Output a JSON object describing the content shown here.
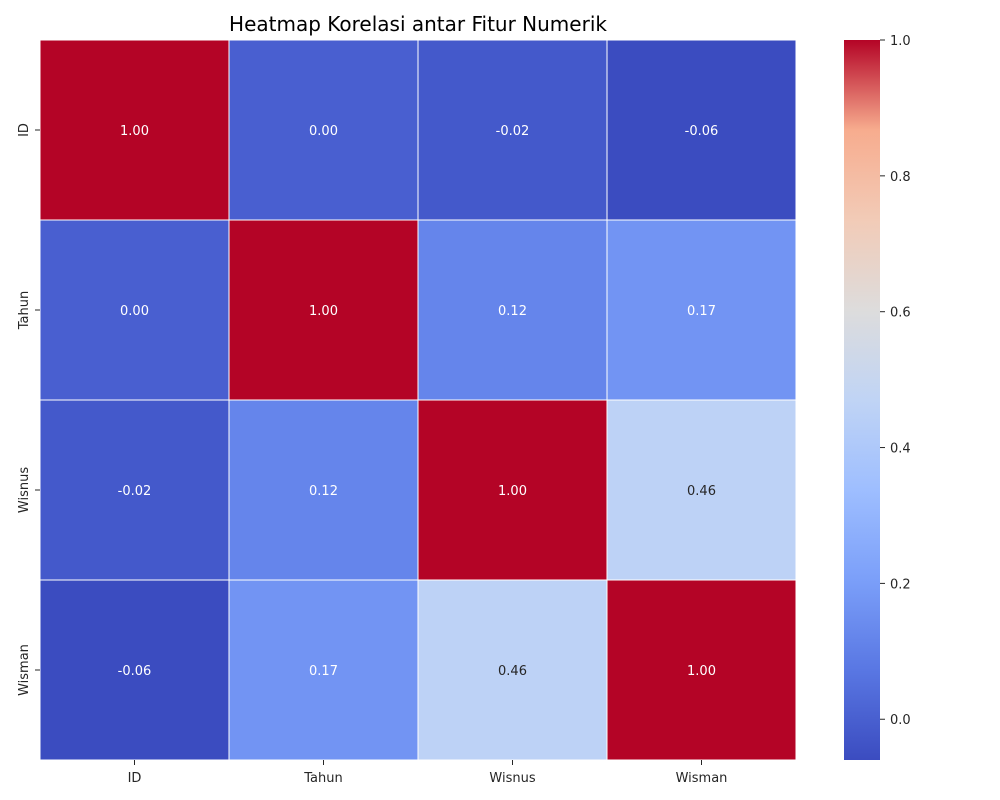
{
  "chart_data": {
    "type": "heatmap",
    "title": "Heatmap Korelasi antar Fitur Numerik",
    "xlabel": "",
    "ylabel": "",
    "row_labels": [
      "ID",
      "Tahun",
      "Wisnus",
      "Wisman"
    ],
    "col_labels": [
      "ID",
      "Tahun",
      "Wisnus",
      "Wisman"
    ],
    "values": [
      [
        1.0,
        0.0,
        -0.02,
        -0.06
      ],
      [
        0.0,
        1.0,
        0.12,
        0.17
      ],
      [
        -0.02,
        0.12,
        1.0,
        0.46
      ],
      [
        -0.06,
        0.17,
        0.46,
        1.0
      ]
    ],
    "cell_text": [
      [
        "1.00",
        "0.00",
        "-0.02",
        "-0.06"
      ],
      [
        "0.00",
        "1.00",
        "0.12",
        "0.17"
      ],
      [
        "-0.02",
        "0.12",
        "1.00",
        "0.46"
      ],
      [
        "-0.06",
        "0.17",
        "0.46",
        "1.00"
      ]
    ],
    "colormap": "coolwarm",
    "colorbar": {
      "range": [
        -0.06,
        1.0
      ],
      "ticks": [
        0.0,
        0.2,
        0.4,
        0.6,
        0.8,
        1.0
      ],
      "tick_labels": [
        "0.0",
        "0.2",
        "0.4",
        "0.6",
        "0.8",
        "1.0"
      ],
      "placement": "right"
    },
    "grid": false,
    "cell_border_color": "#ffffff"
  }
}
